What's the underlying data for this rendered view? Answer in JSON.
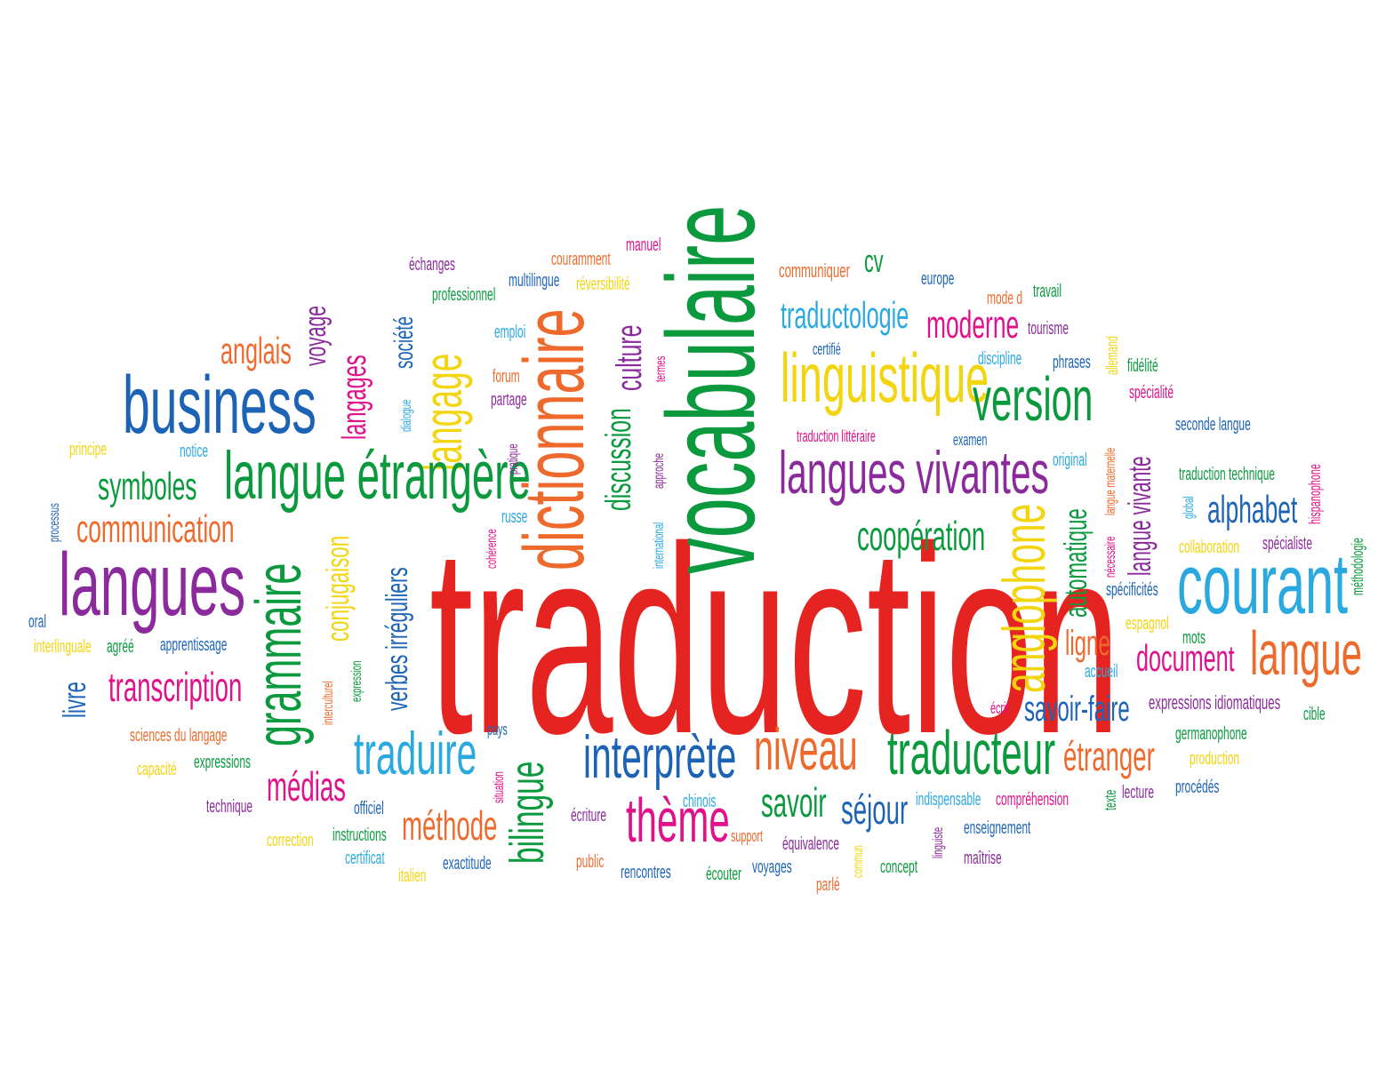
{
  "colors": {
    "red": "#E52421",
    "green": "#0A9A3D",
    "blue": "#1C63B5",
    "purple": "#8B2A9C",
    "orange": "#EE6A2C",
    "magenta": "#E0118A",
    "yellow": "#F2D40F",
    "cyan": "#29A9E0"
  },
  "words": [
    {
      "text": "traduction",
      "color": "red"
    },
    {
      "text": "vocabulaire",
      "color": "green"
    },
    {
      "text": "dictionnaire",
      "color": "orange"
    },
    {
      "text": "langage",
      "color": "yellow"
    },
    {
      "text": "culture",
      "color": "purple"
    },
    {
      "text": "discussion",
      "color": "green"
    },
    {
      "text": "business",
      "color": "blue"
    },
    {
      "text": "langues",
      "color": "purple"
    },
    {
      "text": "grammaire",
      "color": "green"
    },
    {
      "text": "langue étrangère",
      "color": "green"
    },
    {
      "text": "langues vivantes",
      "color": "purple"
    },
    {
      "text": "linguistique",
      "color": "yellow"
    },
    {
      "text": "version",
      "color": "green"
    },
    {
      "text": "courant",
      "color": "cyan"
    },
    {
      "text": "langue",
      "color": "orange"
    },
    {
      "text": "anglophone",
      "color": "yellow"
    },
    {
      "text": "traduire",
      "color": "cyan"
    },
    {
      "text": "interprète",
      "color": "blue"
    },
    {
      "text": "niveau",
      "color": "orange"
    },
    {
      "text": "traducteur",
      "color": "green"
    },
    {
      "text": "bilingue",
      "color": "green"
    },
    {
      "text": "thème",
      "color": "magenta"
    },
    {
      "text": "verbes irréguliers",
      "color": "blue"
    },
    {
      "text": "conjugaison",
      "color": "yellow"
    },
    {
      "text": "langages",
      "color": "magenta"
    },
    {
      "text": "société",
      "color": "blue"
    },
    {
      "text": "voyage",
      "color": "purple"
    },
    {
      "text": "anglais",
      "color": "orange"
    },
    {
      "text": "symboles",
      "color": "green"
    },
    {
      "text": "communication",
      "color": "orange"
    },
    {
      "text": "transcription",
      "color": "magenta"
    },
    {
      "text": "livre",
      "color": "blue"
    },
    {
      "text": "médias",
      "color": "magenta"
    },
    {
      "text": "méthode",
      "color": "orange"
    },
    {
      "text": "savoir",
      "color": "green"
    },
    {
      "text": "séjour",
      "color": "blue"
    },
    {
      "text": "étranger",
      "color": "orange"
    },
    {
      "text": "savoir-faire",
      "color": "blue"
    },
    {
      "text": "document",
      "color": "magenta"
    },
    {
      "text": "ligne",
      "color": "orange"
    },
    {
      "text": "automatique",
      "color": "green"
    },
    {
      "text": "alphabet",
      "color": "blue"
    },
    {
      "text": "langue vivante",
      "color": "purple"
    },
    {
      "text": "coopération",
      "color": "green"
    },
    {
      "text": "traductologie",
      "color": "cyan"
    },
    {
      "text": "moderne",
      "color": "magenta"
    },
    {
      "text": "cv",
      "color": "green"
    },
    {
      "text": "communiquer",
      "color": "orange"
    },
    {
      "text": "europe",
      "color": "blue"
    },
    {
      "text": "mode d",
      "color": "orange"
    },
    {
      "text": "travail",
      "color": "green"
    },
    {
      "text": "tourisme",
      "color": "purple"
    },
    {
      "text": "certifié",
      "color": "blue"
    },
    {
      "text": "discipline",
      "color": "cyan"
    },
    {
      "text": "phrases",
      "color": "blue"
    },
    {
      "text": "allemand",
      "color": "yellow"
    },
    {
      "text": "langue maternelle",
      "color": "orange"
    },
    {
      "text": "fidélité",
      "color": "green"
    },
    {
      "text": "spécialité",
      "color": "magenta"
    },
    {
      "text": "seconde langue",
      "color": "blue"
    },
    {
      "text": "traduction littéraire",
      "color": "magenta"
    },
    {
      "text": "examen",
      "color": "blue"
    },
    {
      "text": "original",
      "color": "cyan"
    },
    {
      "text": "traduction technique",
      "color": "green"
    },
    {
      "text": "hispanophone",
      "color": "magenta"
    },
    {
      "text": "global",
      "color": "cyan"
    },
    {
      "text": "nécessaire",
      "color": "magenta"
    },
    {
      "text": "collaboration",
      "color": "yellow"
    },
    {
      "text": "spécialiste",
      "color": "purple"
    },
    {
      "text": "méthodologie",
      "color": "green"
    },
    {
      "text": "spécificités",
      "color": "blue"
    },
    {
      "text": "espagnol",
      "color": "yellow"
    },
    {
      "text": "mots",
      "color": "green"
    },
    {
      "text": "accueil",
      "color": "cyan"
    },
    {
      "text": "expressions idiomatiques",
      "color": "purple"
    },
    {
      "text": "cible",
      "color": "green"
    },
    {
      "text": "germanophone",
      "color": "green"
    },
    {
      "text": "production",
      "color": "yellow"
    },
    {
      "text": "procédés",
      "color": "blue"
    },
    {
      "text": "lecture",
      "color": "purple"
    },
    {
      "text": "texte",
      "color": "green"
    },
    {
      "text": "compréhension",
      "color": "magenta"
    },
    {
      "text": "indispensable",
      "color": "cyan"
    },
    {
      "text": "écrit",
      "color": "magenta"
    },
    {
      "text": "enseignement",
      "color": "blue"
    },
    {
      "text": "linguiste",
      "color": "purple"
    },
    {
      "text": "maîtrise",
      "color": "purple"
    },
    {
      "text": "concept",
      "color": "green"
    },
    {
      "text": "commun",
      "color": "yellow"
    },
    {
      "text": "équivalence",
      "color": "purple"
    },
    {
      "text": "parlé",
      "color": "orange"
    },
    {
      "text": "voyages",
      "color": "blue"
    },
    {
      "text": "écouter",
      "color": "green"
    },
    {
      "text": "support",
      "color": "orange"
    },
    {
      "text": "chinois",
      "color": "cyan"
    },
    {
      "text": "rencontres",
      "color": "blue"
    },
    {
      "text": "public",
      "color": "orange"
    },
    {
      "text": "écriture",
      "color": "purple"
    },
    {
      "text": "situation",
      "color": "magenta"
    },
    {
      "text": "pays",
      "color": "blue"
    },
    {
      "text": "exactitude",
      "color": "blue"
    },
    {
      "text": "italien",
      "color": "yellow"
    },
    {
      "text": "certificat",
      "color": "cyan"
    },
    {
      "text": "instructions",
      "color": "green"
    },
    {
      "text": "officiel",
      "color": "blue"
    },
    {
      "text": "correction",
      "color": "yellow"
    },
    {
      "text": "technique",
      "color": "purple"
    },
    {
      "text": "expressions",
      "color": "green"
    },
    {
      "text": "capacité",
      "color": "yellow"
    },
    {
      "text": "sciences du langage",
      "color": "orange"
    },
    {
      "text": "interculturel",
      "color": "orange"
    },
    {
      "text": "expression",
      "color": "green"
    },
    {
      "text": "apprentissage",
      "color": "blue"
    },
    {
      "text": "agréé",
      "color": "green"
    },
    {
      "text": "interlinguale",
      "color": "yellow"
    },
    {
      "text": "oral",
      "color": "blue"
    },
    {
      "text": "processus",
      "color": "blue"
    },
    {
      "text": "principe",
      "color": "yellow"
    },
    {
      "text": "notice",
      "color": "cyan"
    },
    {
      "text": "dialogue",
      "color": "cyan"
    },
    {
      "text": "emploi",
      "color": "cyan"
    },
    {
      "text": "forum",
      "color": "orange"
    },
    {
      "text": "partage",
      "color": "purple"
    },
    {
      "text": "pratique",
      "color": "purple"
    },
    {
      "text": "cohérence",
      "color": "magenta"
    },
    {
      "text": "russe",
      "color": "cyan"
    },
    {
      "text": "international",
      "color": "cyan"
    },
    {
      "text": "approche",
      "color": "purple"
    },
    {
      "text": "termes",
      "color": "magenta"
    },
    {
      "text": "échanges",
      "color": "purple"
    },
    {
      "text": "professionnel",
      "color": "green"
    },
    {
      "text": "multilingue",
      "color": "blue"
    },
    {
      "text": "couramment",
      "color": "orange"
    },
    {
      "text": "réversibilité",
      "color": "yellow"
    },
    {
      "text": "manuel",
      "color": "magenta"
    }
  ]
}
